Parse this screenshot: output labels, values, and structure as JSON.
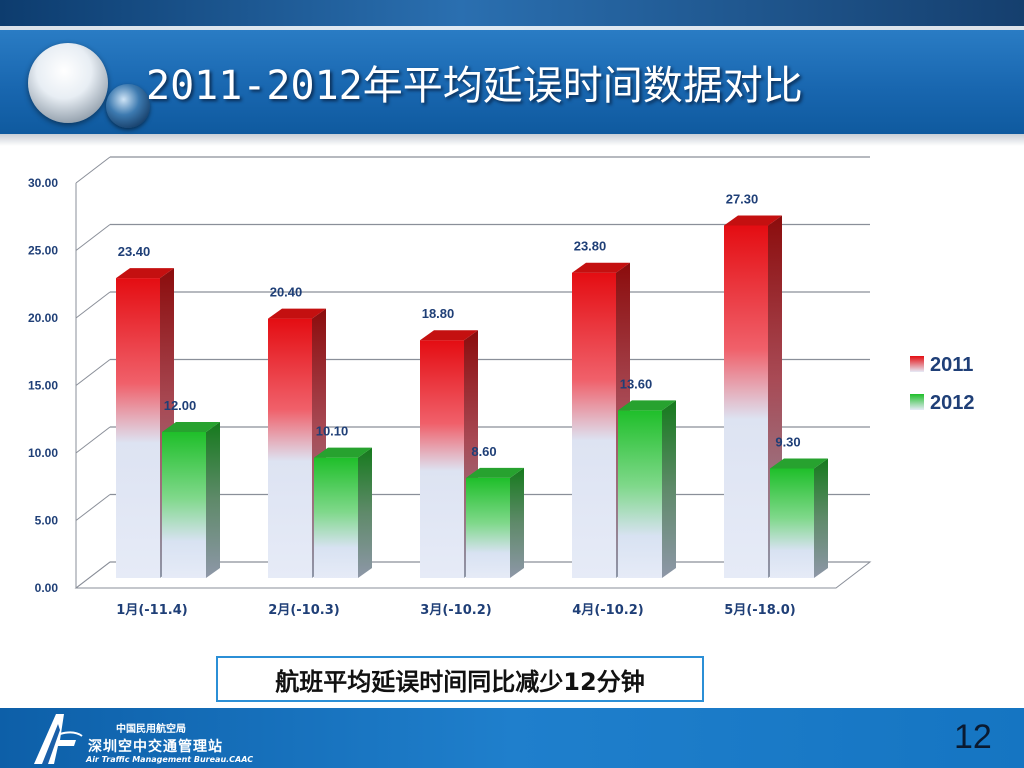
{
  "title": "2011-2012年平均延误时间数据对比",
  "summary": "航班平均延误时间同比减少12分钟",
  "footer": {
    "org_cn_small": "中国民用航空局",
    "org_cn": "深圳空中交通管理站",
    "org_en": "Air Traffic Management Bureau.CAAC"
  },
  "page_number": "12",
  "colors": {
    "series_2011": "#e41b1b",
    "series_2012": "#2fbf2f",
    "label": "#1f3f77"
  },
  "chart_data": {
    "type": "bar",
    "categories": [
      "1月(-11.4)",
      "2月(-10.3)",
      "3月(-10.2)",
      "4月(-10.2)",
      "5月(-18.0)"
    ],
    "series": [
      {
        "name": "2011",
        "values": [
          23.4,
          20.4,
          18.8,
          23.8,
          27.3
        ],
        "labels": [
          "23.40",
          "20.40",
          "18.80",
          "23.80",
          "27.30"
        ]
      },
      {
        "name": "2012",
        "values": [
          12.0,
          10.1,
          8.6,
          13.6,
          9.3
        ],
        "labels": [
          "12.00",
          "10.10",
          "8.60",
          "13.60",
          "9.30"
        ]
      }
    ],
    "ylim": [
      0,
      30
    ],
    "yticks": [
      "0.00",
      "5.00",
      "10.00",
      "15.00",
      "20.00",
      "25.00",
      "30.00"
    ],
    "grid": true,
    "legend": "right",
    "style": "3d-column"
  }
}
